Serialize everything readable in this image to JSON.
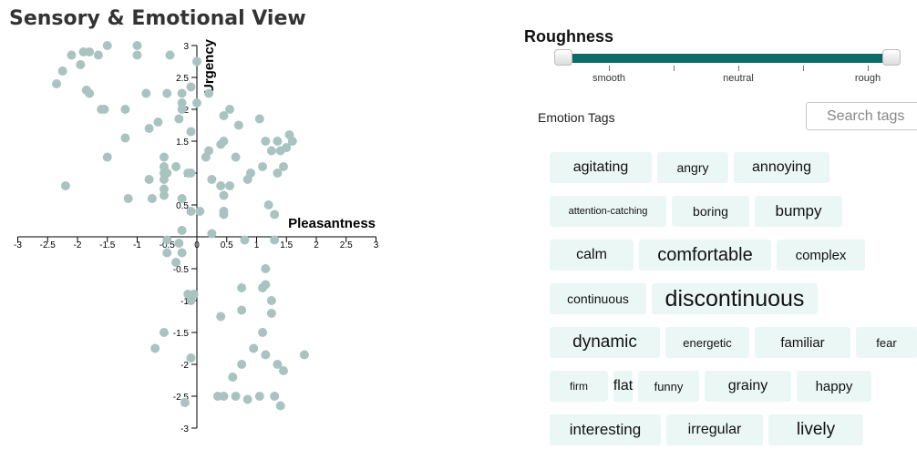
{
  "page_title": "Sensory & Emotional View",
  "chart_data": {
    "type": "scatter",
    "xlabel": "Pleasantness",
    "ylabel": "Urgency",
    "xlim": [
      -3,
      3
    ],
    "ylim": [
      -3,
      3
    ],
    "xticks": [
      "-3",
      "-2.5",
      "-2",
      "-1.5",
      "-1",
      "-0.5",
      "0",
      "0.5",
      "1",
      "1.5",
      "2",
      "2.5",
      "3"
    ],
    "yticks": [
      "3",
      "2.5",
      "2",
      "1.5",
      "1",
      "0.5",
      "-0.5",
      "-1",
      "-1.5",
      "-2",
      "-2.5",
      "-3"
    ],
    "grid": false,
    "point_color": "#a9c4c0",
    "points": [
      [
        -1.5,
        3.0
      ],
      [
        -1.0,
        3.0
      ],
      [
        -1.9,
        2.9
      ],
      [
        -1.8,
        2.9
      ],
      [
        -1.0,
        2.85
      ],
      [
        -2.1,
        2.85
      ],
      [
        -1.65,
        2.85
      ],
      [
        -0.45,
        2.85
      ],
      [
        0.0,
        2.75
      ],
      [
        -1.95,
        2.7
      ],
      [
        -2.25,
        2.6
      ],
      [
        -2.35,
        2.4
      ],
      [
        -0.1,
        2.35
      ],
      [
        -1.85,
        2.3
      ],
      [
        -1.8,
        2.25
      ],
      [
        -0.85,
        2.25
      ],
      [
        -0.5,
        2.25
      ],
      [
        -0.25,
        2.25
      ],
      [
        0.2,
        2.25
      ],
      [
        -0.25,
        2.1
      ],
      [
        0.0,
        2.1
      ],
      [
        -1.6,
        2.0
      ],
      [
        -1.55,
        2.0
      ],
      [
        -1.2,
        2.0
      ],
      [
        -0.25,
        2.0
      ],
      [
        0.55,
        2.0
      ],
      [
        0.45,
        1.9
      ],
      [
        1.05,
        1.85
      ],
      [
        -0.3,
        1.85
      ],
      [
        -0.65,
        1.8
      ],
      [
        0.7,
        1.75
      ],
      [
        -0.8,
        1.7
      ],
      [
        -0.1,
        1.65
      ],
      [
        1.55,
        1.6
      ],
      [
        -1.2,
        1.55
      ],
      [
        0.45,
        1.5
      ],
      [
        1.15,
        1.5
      ],
      [
        1.35,
        1.5
      ],
      [
        1.6,
        1.5
      ],
      [
        0.4,
        1.45
      ],
      [
        1.5,
        1.4
      ],
      [
        1.25,
        1.35
      ],
      [
        0.2,
        1.35
      ],
      [
        1.4,
        1.35
      ],
      [
        0.15,
        1.25
      ],
      [
        0.65,
        1.25
      ],
      [
        -1.5,
        1.25
      ],
      [
        -0.55,
        1.25
      ],
      [
        -0.55,
        1.1
      ],
      [
        -0.35,
        1.1
      ],
      [
        1.1,
        1.1
      ],
      [
        1.45,
        1.1
      ],
      [
        -0.55,
        1.0
      ],
      [
        -0.5,
        1.0
      ],
      [
        -0.15,
        1.0
      ],
      [
        -0.1,
        1.0
      ],
      [
        0.9,
        1.0
      ],
      [
        1.35,
        1.0
      ],
      [
        -0.8,
        0.9
      ],
      [
        -0.55,
        0.9
      ],
      [
        0.25,
        0.9
      ],
      [
        0.85,
        0.9
      ],
      [
        -2.2,
        0.8
      ],
      [
        0.4,
        0.8
      ],
      [
        0.55,
        0.8
      ],
      [
        -0.55,
        0.75
      ],
      [
        -0.55,
        0.65
      ],
      [
        0.45,
        0.65
      ],
      [
        -1.15,
        0.6
      ],
      [
        -0.75,
        0.6
      ],
      [
        -0.25,
        0.6
      ],
      [
        1.2,
        0.5
      ],
      [
        -0.1,
        0.4
      ],
      [
        0.05,
        0.4
      ],
      [
        0.45,
        0.35
      ],
      [
        1.3,
        0.35
      ],
      [
        0.45,
        0.4
      ],
      [
        -0.25,
        0.1
      ],
      [
        0.25,
        0.05
      ],
      [
        -0.5,
        -0.05
      ],
      [
        -0.3,
        -0.1
      ],
      [
        -0.5,
        -0.25
      ],
      [
        -0.25,
        -0.25
      ],
      [
        0.8,
        -0.05
      ],
      [
        1.3,
        -0.05
      ],
      [
        -0.35,
        -0.4
      ],
      [
        1.15,
        -0.5
      ],
      [
        1.15,
        -0.75
      ],
      [
        1.1,
        -0.8
      ],
      [
        0.75,
        -0.8
      ],
      [
        -0.15,
        -0.9
      ],
      [
        -0.05,
        -0.9
      ],
      [
        -0.1,
        -1.0
      ],
      [
        1.25,
        -1.0
      ],
      [
        0.75,
        -1.15
      ],
      [
        1.25,
        -1.2
      ],
      [
        0.4,
        -1.25
      ],
      [
        -0.55,
        -1.5
      ],
      [
        1.1,
        -1.5
      ],
      [
        -0.7,
        -1.75
      ],
      [
        0.95,
        -1.75
      ],
      [
        1.15,
        -1.85
      ],
      [
        -0.1,
        -1.9
      ],
      [
        1.8,
        -1.85
      ],
      [
        0.75,
        -2.0
      ],
      [
        1.35,
        -2.0
      ],
      [
        1.45,
        -2.1
      ],
      [
        0.6,
        -2.2
      ],
      [
        0.35,
        -2.5
      ],
      [
        0.45,
        -2.5
      ],
      [
        0.65,
        -2.5
      ],
      [
        1.05,
        -2.5
      ],
      [
        1.3,
        -2.5
      ],
      [
        0.85,
        -2.55
      ],
      [
        -0.2,
        -2.6
      ],
      [
        1.4,
        -2.65
      ]
    ]
  },
  "panel": {
    "slider_title": "Roughness",
    "slider_labels": [
      "smooth",
      "neutral",
      "rough"
    ],
    "tags_title": "Emotion Tags",
    "search_placeholder": "Search tags",
    "tags": [
      [
        {
          "label": "agitating",
          "size": 16,
          "w": 112
        },
        {
          "label": "angry",
          "size": 14,
          "w": 78
        },
        {
          "label": "annoying",
          "size": 16,
          "w": 105
        }
      ],
      [
        {
          "label": "attention-catching",
          "size": 11,
          "w": 128
        },
        {
          "label": "boring",
          "size": 14,
          "w": 85
        },
        {
          "label": "bumpy",
          "size": 17,
          "w": 96
        }
      ],
      [
        {
          "label": "calm",
          "size": 16,
          "w": 92
        },
        {
          "label": "comfortable",
          "size": 20,
          "w": 145
        },
        {
          "label": "complex",
          "size": 15,
          "w": 97
        }
      ],
      [
        {
          "label": "continuous",
          "size": 14,
          "w": 106
        },
        {
          "label": "discontinuous",
          "size": 25,
          "w": 182
        }
      ],
      [
        {
          "label": "dynamic",
          "size": 19,
          "w": 121
        },
        {
          "label": "energetic",
          "size": 13,
          "w": 92
        },
        {
          "label": "familiar",
          "size": 15,
          "w": 105
        },
        {
          "label": "fear",
          "size": 13,
          "w": 67
        }
      ],
      [
        {
          "label": "firm",
          "size": 12,
          "w": 64
        },
        {
          "label": "flat",
          "size": 16,
          "w": 21
        },
        {
          "label": "funny",
          "size": 13,
          "w": 67
        },
        {
          "label": "grainy",
          "size": 16,
          "w": 95
        },
        {
          "label": "happy",
          "size": 15,
          "w": 82
        }
      ],
      [
        {
          "label": "interesting",
          "size": 17,
          "w": 122
        },
        {
          "label": "irregular",
          "size": 16,
          "w": 106
        },
        {
          "label": "lively",
          "size": 19,
          "w": 104
        }
      ]
    ]
  }
}
